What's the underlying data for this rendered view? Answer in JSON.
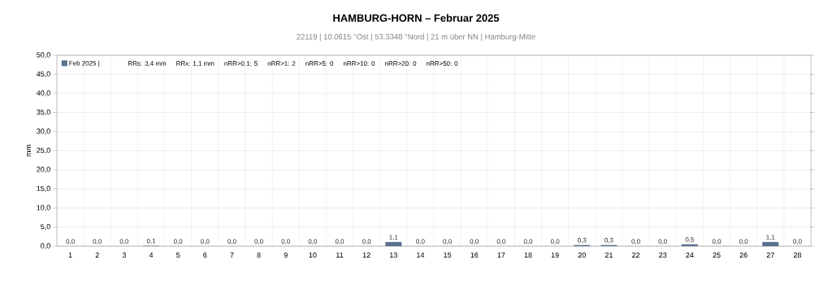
{
  "chart_data": {
    "type": "bar",
    "title": "HAMBURG-HORN   –   Februar 2025",
    "subtitle": "22119  |  10.0615 °Ost  |  53.3348 °Nord   | 21 m über NN  |  Hamburg-Mitte",
    "ylabel": "mm",
    "categories": [
      "1",
      "2",
      "3",
      "4",
      "5",
      "6",
      "7",
      "8",
      "9",
      "10",
      "11",
      "12",
      "13",
      "14",
      "15",
      "16",
      "17",
      "18",
      "19",
      "20",
      "21",
      "22",
      "23",
      "24",
      "25",
      "26",
      "27",
      "28"
    ],
    "series": [
      {
        "name": "Feb 2025 |",
        "color": "#5a7190",
        "values": [
          0,
          0,
          0,
          0.1,
          0,
          0,
          0,
          0,
          0,
          0,
          0,
          0,
          1.1,
          0,
          0,
          0,
          0,
          0,
          0,
          0.3,
          0.3,
          0,
          0,
          0.5,
          0,
          0,
          1.1,
          0
        ],
        "value_labels": [
          "0,0",
          "0,0",
          "0,0",
          "0,1",
          "0,0",
          "0,0",
          "0,0",
          "0,0",
          "0,0",
          "0,0",
          "0,0",
          "0,0",
          "1,1",
          "0,0",
          "0,0",
          "0,0",
          "0,0",
          "0,0",
          "0,0",
          "0,3",
          "0,3",
          "0,0",
          "0,0",
          "0,5",
          "0,0",
          "0,0",
          "1,1",
          "0,0"
        ]
      }
    ],
    "annotations": [
      "RRs: 3,4 mm",
      "RRx: 1,1 mm",
      "nRR>0.1: 5",
      "nRR>1: 2",
      "nRR>5: 0",
      "nRR>10: 0",
      "nRR>20: 0",
      "nRR>50: 0"
    ],
    "ylim": [
      0,
      50
    ],
    "yticks": [
      {
        "value": 0,
        "label": "0,0"
      },
      {
        "value": 5,
        "label": "5,0"
      },
      {
        "value": 10,
        "label": "10,0"
      },
      {
        "value": 15,
        "label": "15,0"
      },
      {
        "value": 20,
        "label": "20,0"
      },
      {
        "value": 25,
        "label": "25,0"
      },
      {
        "value": 30,
        "label": "30,0"
      },
      {
        "value": 35,
        "label": "35,0"
      },
      {
        "value": 40,
        "label": "40,0"
      },
      {
        "value": 45,
        "label": "45,0"
      },
      {
        "value": 50,
        "label": "50,0"
      }
    ],
    "grid": true,
    "legend": "top left"
  }
}
